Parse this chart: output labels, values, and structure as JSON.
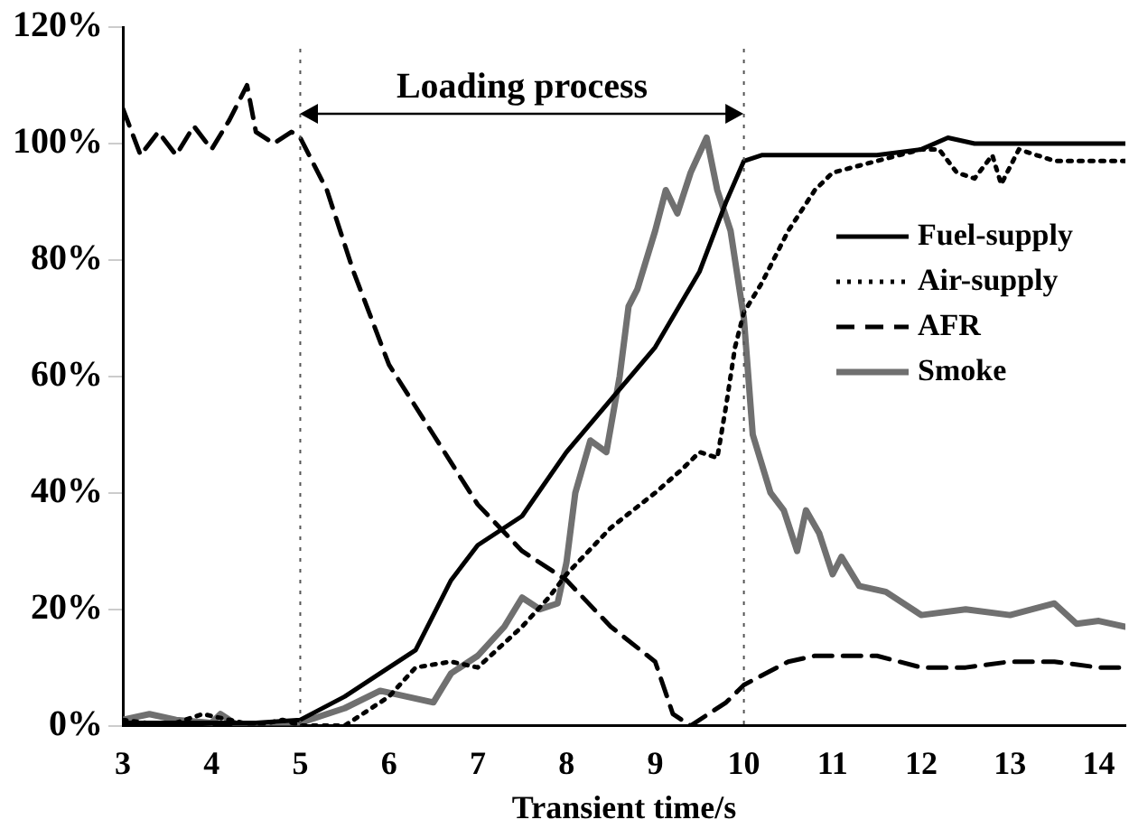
{
  "chart_data": {
    "type": "line",
    "xlabel": "Transient time/s",
    "xlim": [
      3,
      14.3
    ],
    "xticks": [
      3,
      4,
      5,
      6,
      7,
      8,
      9,
      10,
      11,
      12,
      13,
      14
    ],
    "ylim": [
      0,
      120
    ],
    "yticks": [
      {
        "value": 0,
        "label": "0%"
      },
      {
        "value": 20,
        "label": "20%"
      },
      {
        "value": 40,
        "label": "40%"
      },
      {
        "value": 60,
        "label": "60%"
      },
      {
        "value": 80,
        "label": "80%"
      },
      {
        "value": 100,
        "label": "100%"
      },
      {
        "value": 120,
        "label": "120%"
      }
    ],
    "grid": false,
    "legend": "right",
    "marker": "none",
    "series": [
      {
        "name": "Fuel-supply",
        "color": "#000000",
        "line_style": "solid",
        "x": [
          3,
          3.5,
          4,
          4.5,
          5,
          5.5,
          6,
          6.3,
          6.7,
          7,
          7.5,
          8,
          8.5,
          9,
          9.5,
          9.8,
          10,
          10.2,
          10.5,
          11,
          11.5,
          12,
          12.3,
          12.6,
          13,
          13.5,
          14,
          14.3
        ],
        "values": [
          0.5,
          0.5,
          0.5,
          0.5,
          1,
          5,
          10,
          13,
          25,
          31,
          36,
          47,
          56,
          65,
          78,
          90,
          97,
          98,
          98,
          98,
          98,
          99,
          101,
          100,
          100,
          100,
          100,
          100
        ]
      },
      {
        "name": "Air-supply",
        "color": "#000000",
        "line_style": "dotted",
        "x": [
          3,
          3.5,
          3.9,
          4.5,
          4.8,
          5,
          5.5,
          5.8,
          6,
          6.3,
          6.7,
          7,
          7.5,
          7.8,
          8,
          8.5,
          9,
          9.3,
          9.5,
          9.7,
          9.8,
          9.9,
          10,
          10.2,
          10.5,
          10.8,
          11,
          11.5,
          12,
          12.2,
          12.4,
          12.6,
          12.8,
          12.9,
          13.1,
          13.5,
          14,
          14.3
        ],
        "values": [
          1,
          0,
          2,
          0,
          1,
          0,
          0,
          3,
          5,
          10,
          11,
          10,
          17,
          22,
          26,
          34,
          40,
          44,
          47,
          46,
          55,
          65,
          71,
          76,
          85,
          92,
          95,
          97,
          99,
          99,
          95,
          94,
          98,
          93,
          99,
          97,
          97,
          97
        ]
      },
      {
        "name": "AFR",
        "color": "#000000",
        "line_style": "dashed",
        "x": [
          3,
          3.2,
          3.4,
          3.6,
          3.8,
          4,
          4.2,
          4.4,
          4.5,
          4.7,
          4.9,
          5,
          5.3,
          5.6,
          6,
          6.5,
          7,
          7.5,
          8,
          8.5,
          9,
          9.2,
          9.4,
          9.8,
          10,
          10.5,
          10.8,
          11.5,
          12,
          12.5,
          13,
          13.5,
          14,
          14.3
        ],
        "values": [
          106,
          98,
          102,
          98,
          103,
          99,
          104,
          110,
          102,
          100,
          102,
          101,
          92,
          78,
          62,
          50,
          38,
          30,
          25,
          17,
          11,
          2,
          0,
          4,
          7,
          11,
          12,
          12,
          10,
          10,
          11,
          11,
          10,
          10
        ]
      },
      {
        "name": "Smoke",
        "color": "#707070",
        "line_style": "solid",
        "x": [
          3,
          3.3,
          3.6,
          4,
          4.1,
          4.3,
          5,
          5.5,
          5.9,
          6.2,
          6.5,
          6.7,
          7,
          7.3,
          7.5,
          7.7,
          7.9,
          8,
          8.1,
          8.27,
          8.45,
          8.6,
          8.7,
          8.8,
          9,
          9.12,
          9.25,
          9.4,
          9.58,
          9.7,
          9.85,
          10,
          10.1,
          10.3,
          10.45,
          10.6,
          10.7,
          10.85,
          11,
          11.1,
          11.3,
          11.6,
          12,
          12.5,
          13,
          13.5,
          13.75,
          14,
          14.3
        ],
        "values": [
          1,
          2,
          1,
          0.5,
          2,
          0,
          0.5,
          3,
          6,
          5,
          4,
          9,
          12,
          17,
          22,
          20,
          21,
          28,
          40,
          49,
          47,
          60,
          72,
          75,
          85,
          92,
          88,
          95,
          101,
          92,
          85,
          70,
          50,
          40,
          37,
          30,
          37,
          33,
          26,
          29,
          24,
          23,
          19,
          20,
          19,
          21,
          17.5,
          18,
          17
        ]
      }
    ],
    "ref_lines": [
      {
        "axis": "x",
        "value": 5,
        "line_style": "dotted",
        "color": "#555555"
      },
      {
        "axis": "x",
        "value": 10,
        "line_style": "dotted",
        "color": "#555555"
      }
    ],
    "annotations": [
      "Loading process"
    ]
  }
}
